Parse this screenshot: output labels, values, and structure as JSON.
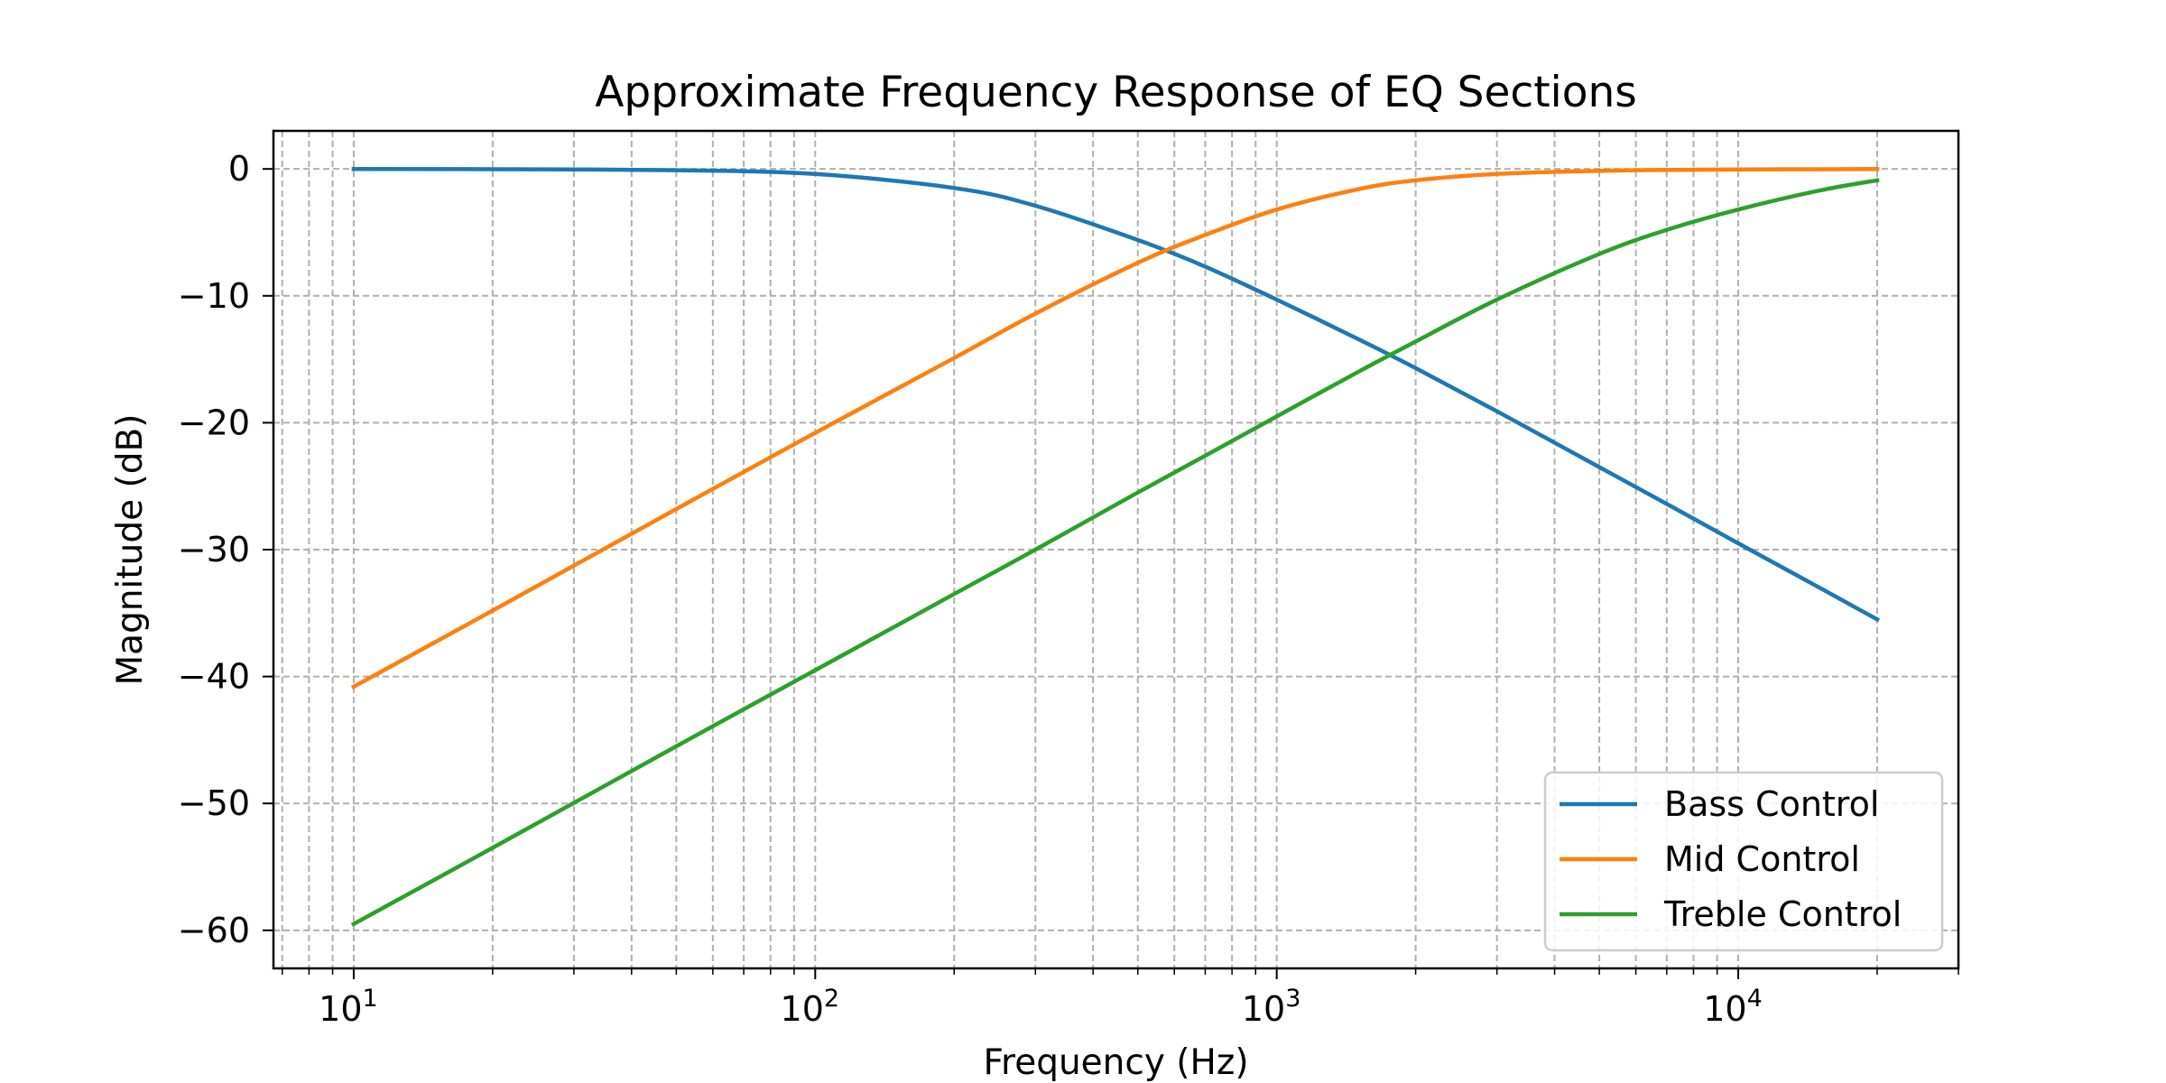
{
  "chart_data": {
    "type": "line",
    "title": "Approximate Frequency Response of EQ Sections",
    "xlabel": "Frequency (Hz)",
    "ylabel": "Magnitude (dB)",
    "xscale": "log",
    "xlim": [
      6.7,
      30000
    ],
    "ylim": [
      -63,
      3
    ],
    "x_ticks": [
      {
        "value": 10,
        "base": "10",
        "exp": "1"
      },
      {
        "value": 100,
        "base": "10",
        "exp": "2"
      },
      {
        "value": 1000,
        "base": "10",
        "exp": "3"
      },
      {
        "value": 10000,
        "base": "10",
        "exp": "4"
      }
    ],
    "y_ticks": [
      {
        "value": 0,
        "label": "0"
      },
      {
        "value": -10,
        "label": "−10"
      },
      {
        "value": -20,
        "label": "−20"
      },
      {
        "value": -30,
        "label": "−30"
      },
      {
        "value": -40,
        "label": "−40"
      },
      {
        "value": -50,
        "label": "−50"
      },
      {
        "value": -60,
        "label": "−60"
      }
    ],
    "grid": true,
    "grid_style": "dashed, major and minor",
    "legend_position": "lower-right",
    "x": [
      10,
      20,
      50,
      100,
      200,
      300,
      500,
      700,
      1000,
      1500,
      2000,
      3000,
      5000,
      7000,
      10000,
      15000,
      20000
    ],
    "series": [
      {
        "name": "Bass Control",
        "color": "#1f77b4",
        "values": [
          0.0,
          -0.02,
          -0.1,
          -0.4,
          -1.5,
          -2.9,
          -5.6,
          -7.7,
          -10.3,
          -13.4,
          -15.7,
          -19.1,
          -23.5,
          -26.4,
          -29.5,
          -33.0,
          -35.5
        ]
      },
      {
        "name": "Mid Control",
        "color": "#ff7f0e",
        "values": [
          -40.8,
          -34.8,
          -26.8,
          -20.8,
          -14.9,
          -11.4,
          -7.4,
          -5.2,
          -3.2,
          -1.6,
          -0.9,
          -0.4,
          -0.15,
          -0.08,
          -0.04,
          -0.02,
          -0.01
        ]
      },
      {
        "name": "Treble Control",
        "color": "#2ca02c",
        "values": [
          -59.5,
          -53.5,
          -45.5,
          -39.5,
          -33.5,
          -30.0,
          -25.5,
          -22.6,
          -19.5,
          -16.0,
          -13.6,
          -10.3,
          -6.7,
          -4.8,
          -3.2,
          -1.7,
          -0.9
        ]
      }
    ]
  }
}
